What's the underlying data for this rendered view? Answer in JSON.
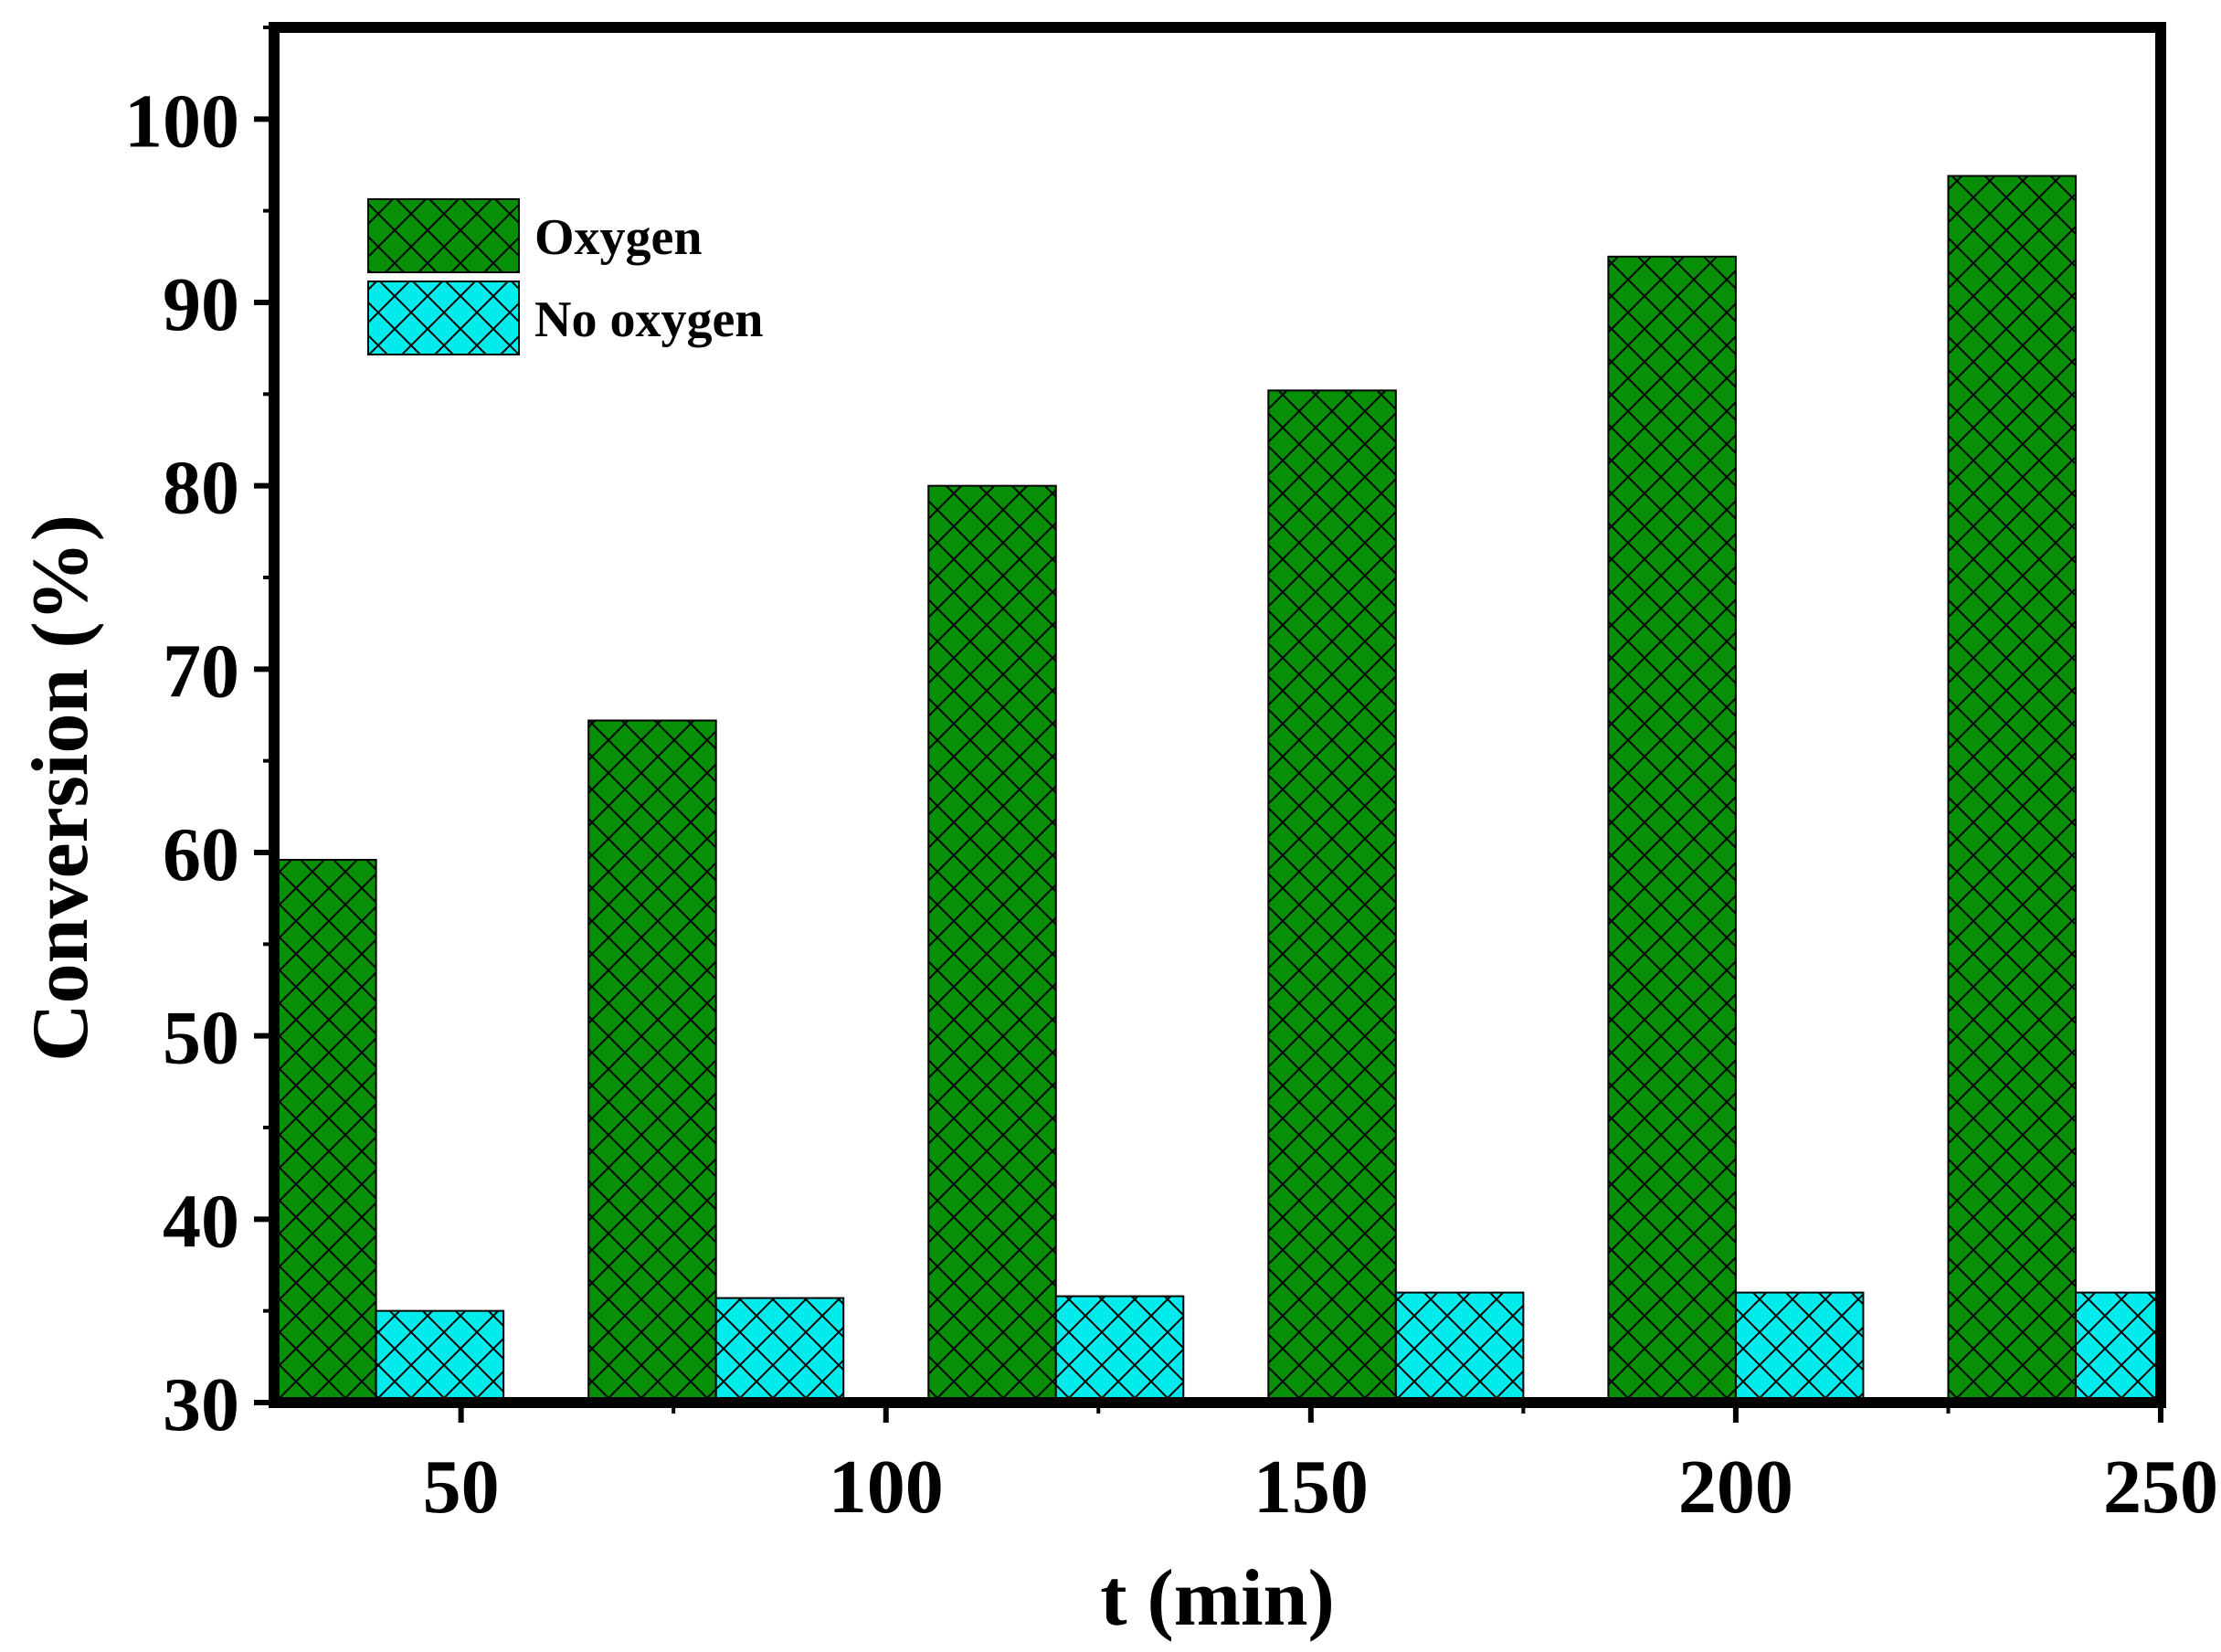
{
  "chart_data": {
    "type": "bar",
    "title": "",
    "xlabel": "t (min)",
    "ylabel": "Conversion (%)",
    "x": [
      40,
      80,
      120,
      160,
      200,
      240
    ],
    "xlim": [
      28,
      250
    ],
    "ylim": [
      30,
      105
    ],
    "xticks": [
      50,
      100,
      150,
      200,
      250
    ],
    "yticks": [
      30,
      40,
      50,
      60,
      70,
      80,
      90,
      100
    ],
    "grid": false,
    "legend_position": "top-left",
    "series": [
      {
        "name": "Oxygen",
        "values": [
          59.6,
          67.2,
          80.0,
          85.2,
          92.5,
          96.9
        ],
        "color": "#078f07",
        "pattern": "crosshatch"
      },
      {
        "name": "No oxygen",
        "values": [
          35.0,
          35.7,
          35.8,
          36.0,
          36.0,
          36.0
        ],
        "color": "#00ecec",
        "pattern": "crosshatch"
      }
    ]
  }
}
